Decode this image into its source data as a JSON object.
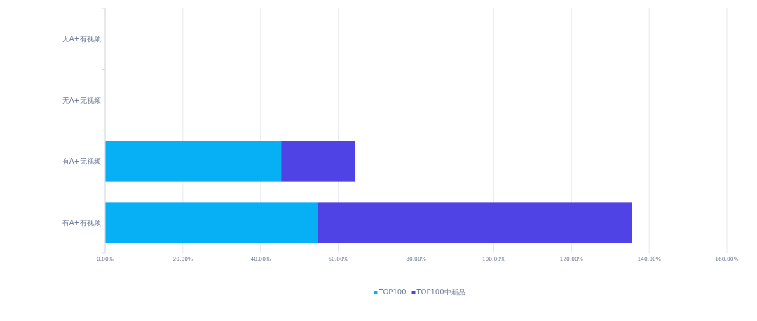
{
  "chart_data": {
    "type": "bar",
    "orientation": "horizontal",
    "stacked": true,
    "categories": [
      "无A+有视频",
      "无A+无视频",
      "有A+无视频",
      "有A+有视频"
    ],
    "series": [
      {
        "name": "TOP100",
        "color": "#07b0f4",
        "values": [
          0,
          0,
          45.3,
          54.7
        ]
      },
      {
        "name": "TOP100中新品",
        "color": "#4f43e6",
        "values": [
          0,
          0,
          19.1,
          80.9
        ]
      }
    ],
    "xlim": [
      0,
      160
    ],
    "xticks": [
      {
        "value": 0,
        "label": "0.00%"
      },
      {
        "value": 20,
        "label": "20.00%"
      },
      {
        "value": 40,
        "label": "40.00%"
      },
      {
        "value": 60,
        "label": "60.00%"
      },
      {
        "value": 80,
        "label": "80.00%"
      },
      {
        "value": 100,
        "label": "100.00%"
      },
      {
        "value": 120,
        "label": "120.00%"
      },
      {
        "value": 140,
        "label": "140.00%"
      },
      {
        "value": 160,
        "label": "160.00%"
      }
    ],
    "grid": "x",
    "legend": "bottom"
  }
}
